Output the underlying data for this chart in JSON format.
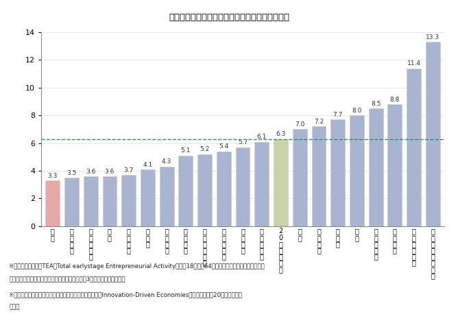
{
  "title": "日本全体の起業活動は国際的にみて極めて低水準",
  "categories": [
    "日\n本",
    "ベ\nル\nギ\nー",
    "デ\nン\nマ\nー\nク",
    "香\n港",
    "イ\nタ\nリ\nア",
    "ド\nイ\nツ",
    "フ\nラ\nン\nス",
    "ス\nペ\nイ\nン",
    "フ\nィ\nン\nラ\nン\nド",
    "ス\nロ\nベ\nニ\nア",
    "イ\nギ\nリ\nス",
    "イ\nス\nラ\nエ\nル",
    "2\n0\nか\n国\nの\n平\n均",
    "韓\n国",
    "オ\nラ\nン\nダ",
    "ス\nイ\nス",
    "米\n国",
    "ノ\nル\nウ\nェ\nー",
    "ギ\nリ\nシ\nャ",
    "ア\nイ\nス\nラ\nン\nド",
    "ア\nラ\nブ\n首\n長\n国\n連\n邦"
  ],
  "values": [
    3.3,
    3.5,
    3.6,
    3.6,
    3.7,
    4.1,
    4.3,
    5.1,
    5.2,
    5.4,
    5.7,
    6.1,
    6.3,
    7.0,
    7.2,
    7.7,
    8.0,
    8.5,
    8.8,
    11.4,
    13.3
  ],
  "bar_colors": [
    "#e8a8a8",
    "#a8b4d0",
    "#a8b4d0",
    "#a8b4d0",
    "#a8b4d0",
    "#a8b4d0",
    "#a8b4d0",
    "#a8b4d0",
    "#a8b4d0",
    "#a8b4d0",
    "#a8b4d0",
    "#a8b4d0",
    "#c8d4a8",
    "#a8b4d0",
    "#a8b4d0",
    "#a8b4d0",
    "#a8b4d0",
    "#a8b4d0",
    "#a8b4d0",
    "#a8b4d0",
    "#a8b4d0"
  ],
  "bar_edge_color": "#c8c8d8",
  "ylim": [
    0,
    14
  ],
  "yticks": [
    0,
    2,
    4,
    6,
    8,
    10,
    12,
    14
  ],
  "hline_value": 6.3,
  "hline_color": "#00aa44",
  "footnote1": "※　起業家の割合（TEA（Total earlystage Entrepreneurial Activity））：18歳から64歳までの人口に占める起業活動を",
  "footnote1b": "　　行っている者（起業準備中の者および起業後3年半以内の者）の割合",
  "footnote2": "※　出典のレポートにて、イノベーションけん引型経済（Innovation-Driven Economies）と定義されも20か国の値を掴",
  "footnote2b": "　　載"
}
